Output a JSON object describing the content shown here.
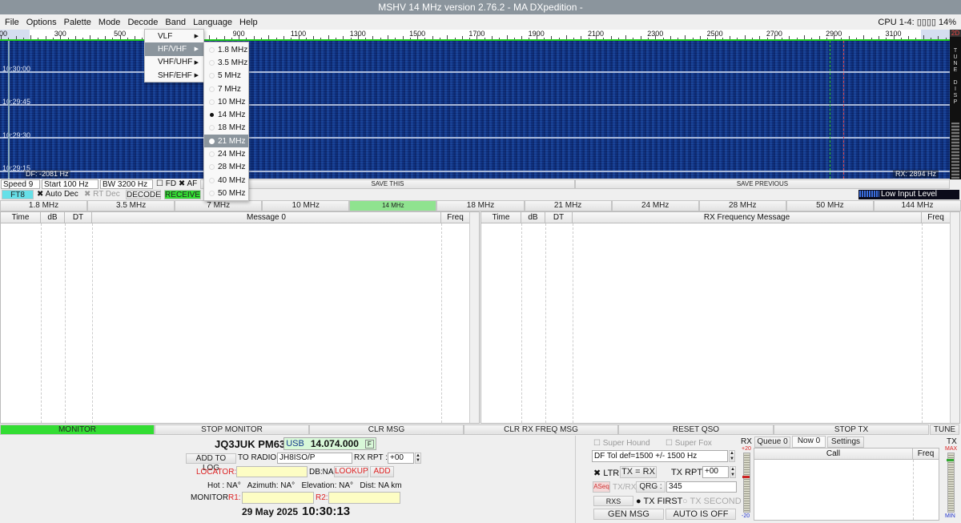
{
  "window": {
    "title": "MSHV 14 MHz version 2.76.2  - MA DXpedition -",
    "cpu": "CPU 1-4: ▯▯▯▯ 14%"
  },
  "menu": [
    "File",
    "Options",
    "Palette",
    "Mode",
    "Decode",
    "Band",
    "Language",
    "Help"
  ],
  "band_menu": {
    "groups": [
      "VLF",
      "HF/VHF",
      "VHF/UHF",
      "SHF/EHF"
    ],
    "selected_group": "HF/VHF",
    "items": [
      "1.8 MHz",
      "3.5 MHz",
      "5 MHz",
      "7 MHz",
      "10 MHz",
      "14 MHz",
      "18 MHz",
      "21 MHz",
      "24 MHz",
      "28 MHz",
      "40 MHz",
      "50 MHz"
    ],
    "checked": "14 MHz",
    "hovered": "21 MHz"
  },
  "ruler": {
    "labels": [
      "00",
      "300",
      "500",
      "700",
      "900",
      "1100",
      "1300",
      "1500",
      "1700",
      "1900",
      "2100",
      "2300",
      "2500",
      "2700",
      "2900",
      "3100"
    ]
  },
  "waterfall": {
    "timestamps": [
      "10:30:00",
      "10:29:45",
      "10:29:30",
      "10:29:15"
    ],
    "df": "DF: -2081 Hz",
    "rx": "RX: 2894 Hz",
    "side": "2D",
    "side_labels": [
      "T",
      "U",
      "N",
      "E",
      "",
      "D",
      "I",
      "S",
      "P"
    ]
  },
  "controls": {
    "speed": "Speed 9",
    "start": "Start 100 Hz",
    "bw": "BW 3200 Hz",
    "fd": "FD",
    "af": "AF",
    "save_this": "SAVE THIS",
    "save_previous": "SAVE PREVIOUS",
    "mode": "FT8",
    "auto_dec": "Auto Dec",
    "rt_dec": "RT Dec",
    "decode": "DECODE",
    "receive": "RECEIVE",
    "input_level": "Low Input Level"
  },
  "bands": [
    "1.8 MHz",
    "3.5 MHz",
    "7 MHz",
    "10 MHz",
    "14 MHz",
    "18 MHz",
    "21 MHz",
    "24 MHz",
    "28 MHz",
    "50 MHz",
    "144 MHz"
  ],
  "active_band": "14 MHz",
  "left_table": {
    "headers": [
      "Time",
      "dB",
      "DT",
      "Message 0",
      "Freq"
    ]
  },
  "right_table": {
    "headers": [
      "Time",
      "dB",
      "DT",
      "RX Frequency Message",
      "Freq"
    ]
  },
  "actions": [
    "MONITOR",
    "STOP MONITOR",
    "CLR MSG",
    "CLR RX FREQ MSG",
    "RESET QSO",
    "STOP TX",
    "TUNE"
  ],
  "station": {
    "call_loc": "JQ3JUK PM63",
    "mode": "USB",
    "freq": "14.074.000",
    "f": "F",
    "add_to_log": "ADD TO LOG",
    "to_radio_label": "TO RADIO:",
    "to_radio": "JH8ISO/P",
    "rx_rpt_label": "RX RPT :",
    "rx_rpt": "+00",
    "locator_label": "LOCATOR:",
    "db": "DB:NA",
    "lookup": "LOOKUP",
    "add": "ADD",
    "info": "Hot : NA°   Azimuth: NA°   Elevation: NA°   Dist: NA km",
    "monitor_label": "MONITOR",
    "r1": "R1:",
    "r2": "R2:",
    "date": "29 May 2025",
    "time": "10:30:13"
  },
  "tx": {
    "super_hound": "Super Hound",
    "super_fox": "Super Fox",
    "df_tol": "DF Tol def=1500 +/-  1500  Hz",
    "ltr": "LTR",
    "tx_eq_rx": "TX = RX",
    "tx_rpt_label": "TX RPT :",
    "tx_rpt": "+00",
    "aseq": "ASeq",
    "txrx": "TX/RX 15  s",
    "qrg_label": "QRG :",
    "qrg": "345",
    "rxs": "RXS",
    "tx_first": "TX FIRST",
    "tx_second": "TX SECOND",
    "gen_msg": "GEN MSG",
    "auto": "AUTO IS OFF"
  },
  "queue": {
    "rx": "RX",
    "tx": "TX",
    "rx_max": "+20",
    "rx_min": "-20",
    "tx_max": "MAX",
    "tx_min": "MIN",
    "tabs": [
      "Queue 0",
      "Now 0",
      "Settings"
    ],
    "headers": [
      "Call",
      "Freq"
    ]
  },
  "colors": {
    "green": "#33dd33",
    "cyan": "#66e0e8",
    "waterfall": "#123a8c",
    "active_band": "#8fe38f"
  }
}
